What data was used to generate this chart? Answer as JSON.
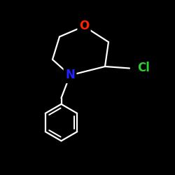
{
  "bg_color": "#000000",
  "line_color": "#ffffff",
  "N_color": "#2222ff",
  "O_color": "#ff2200",
  "Cl_color": "#33cc33",
  "label_N": "N",
  "label_O": "O",
  "label_Cl": "Cl",
  "fig_width": 2.5,
  "fig_height": 2.5,
  "dpi": 100,
  "lw": 1.6,
  "font_size": 12
}
